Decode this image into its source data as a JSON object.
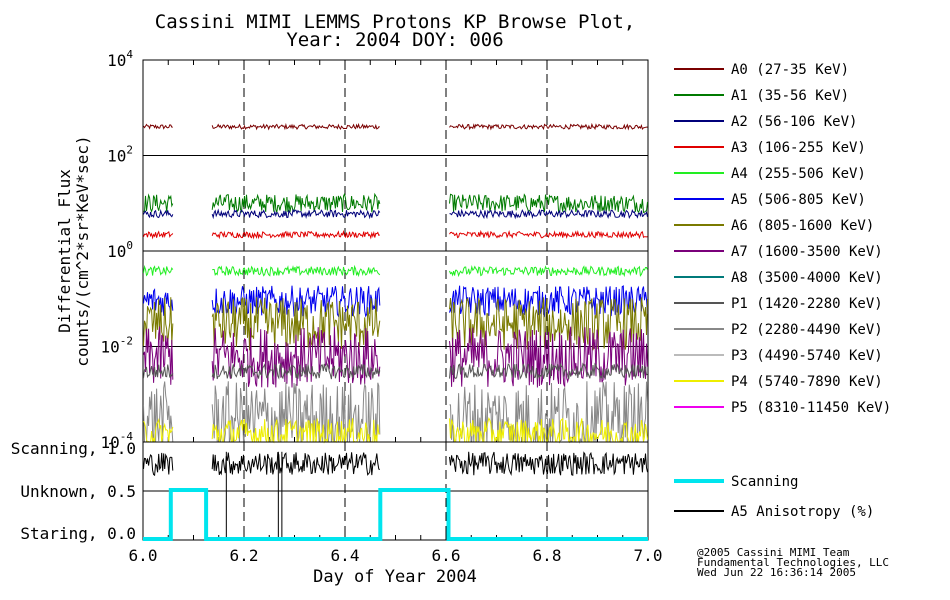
{
  "title_line1": "Cassini MIMI LEMMS Protons KP Browse Plot,",
  "title_line2": "Year: 2004 DOY: 006",
  "credit": [
    "@2005 Cassini MIMI Team",
    "Fundamental Technologies, LLC",
    "Wed Jun 22 16:36:14 2005"
  ],
  "colors": {
    "A0": "#7a0000",
    "A1": "#007a00",
    "A2": "#00007a",
    "A3": "#e00000",
    "A4": "#22ee22",
    "A5": "#0000ee",
    "A6": "#7a7a00",
    "A7": "#7a007a",
    "A8": "#007a7a",
    "P1": "#555555",
    "P2": "#888888",
    "P3": "#bbbbbb",
    "P4": "#eeee00",
    "P5": "#ee00ee",
    "scanning": "#00e5ee",
    "anisotropy": "#000000"
  },
  "chart_data": [
    {
      "type": "line",
      "title": "Cassini MIMI LEMMS Protons KP Browse Plot, Year: 2004 DOY: 006",
      "ylabel_line1": "Differential Flux",
      "ylabel_line2": "counts/(cm^2*sr*KeV*sec)",
      "y_scale": "log",
      "ylim": [
        0.0001,
        10000
      ],
      "y_ticks": [
        {
          "base": "10",
          "exp": "4"
        },
        {
          "base": "10",
          "exp": "2"
        },
        {
          "base": "10",
          "exp": "0"
        },
        {
          "base": "10",
          "exp": "-2"
        },
        {
          "base": "10",
          "exp": "-4"
        }
      ],
      "xlim": [
        6.0,
        7.0
      ],
      "grid": true,
      "data_gaps": [
        [
          6.06,
          6.135
        ],
        [
          6.47,
          6.605
        ]
      ],
      "series": [
        {
          "key": "A0",
          "name": "A0 (27-35 KeV)",
          "y": 400,
          "spread": 0.03
        },
        {
          "key": "A1",
          "name": "A1 (35-56 KeV)",
          "y": 10,
          "spread": 0.12
        },
        {
          "key": "A2",
          "name": "A2 (56-106 KeV)",
          "y": 6,
          "spread": 0.05
        },
        {
          "key": "A3",
          "name": "A3 (106-255 KeV)",
          "y": 2.2,
          "spread": 0.04
        },
        {
          "key": "A4",
          "name": "A4 (255-506 KeV)",
          "y": 0.38,
          "spread": 0.06
        },
        {
          "key": "A5",
          "name": "A5 (506-805 KeV)",
          "y": 0.09,
          "spread": 0.2
        },
        {
          "key": "A6",
          "name": "A6 (805-1600 KeV)",
          "y": 0.03,
          "spread": 0.35
        },
        {
          "key": "A7",
          "name": "A7 (1600-3500 KeV)",
          "y": 0.006,
          "spread": 0.4
        },
        {
          "key": "A8",
          "name": "A8 (3500-4000 KeV)"
        },
        {
          "key": "P1",
          "name": "P1 (1420-2280 KeV)",
          "y": 0.003,
          "spread": 0.1
        },
        {
          "key": "P2",
          "name": "P2 (2280-4490 KeV)",
          "y": 0.0003,
          "spread": 0.5
        },
        {
          "key": "P3",
          "name": "P3 (4490-5740 KeV)"
        },
        {
          "key": "P4",
          "name": "P4 (5740-7890 KeV)",
          "y": 0.00015,
          "spread": 0.2
        },
        {
          "key": "P5",
          "name": "P5 (8310-11450 KeV)"
        }
      ]
    },
    {
      "type": "line",
      "xlabel": "Day of Year 2004",
      "xlim": [
        6.0,
        7.0
      ],
      "x_ticks": [
        "6.0",
        "6.2",
        "6.4",
        "6.6",
        "6.8",
        "7.0"
      ],
      "ylim": [
        0.0,
        1.0
      ],
      "y_ticks": [
        {
          "label": "Scanning, 1.0",
          "value": 1.0
        },
        {
          "label": "Unknown, 0.5",
          "value": 0.5
        },
        {
          "label": "Staring, 0.0",
          "value": 0.0
        }
      ],
      "series": [
        {
          "key": "scanning",
          "name": "Scanning",
          "x": [
            6.0,
            6.055,
            6.055,
            6.125,
            6.125,
            6.47,
            6.47,
            6.605,
            6.605,
            7.0
          ],
          "y": [
            0.0,
            0.0,
            0.5,
            0.5,
            0.0,
            0.0,
            0.5,
            0.5,
            0.0,
            0.0
          ]
        },
        {
          "key": "anisotropy",
          "name": "A5 Anisotropy (%)",
          "y": 0.78,
          "spread": 0.12
        }
      ]
    }
  ]
}
